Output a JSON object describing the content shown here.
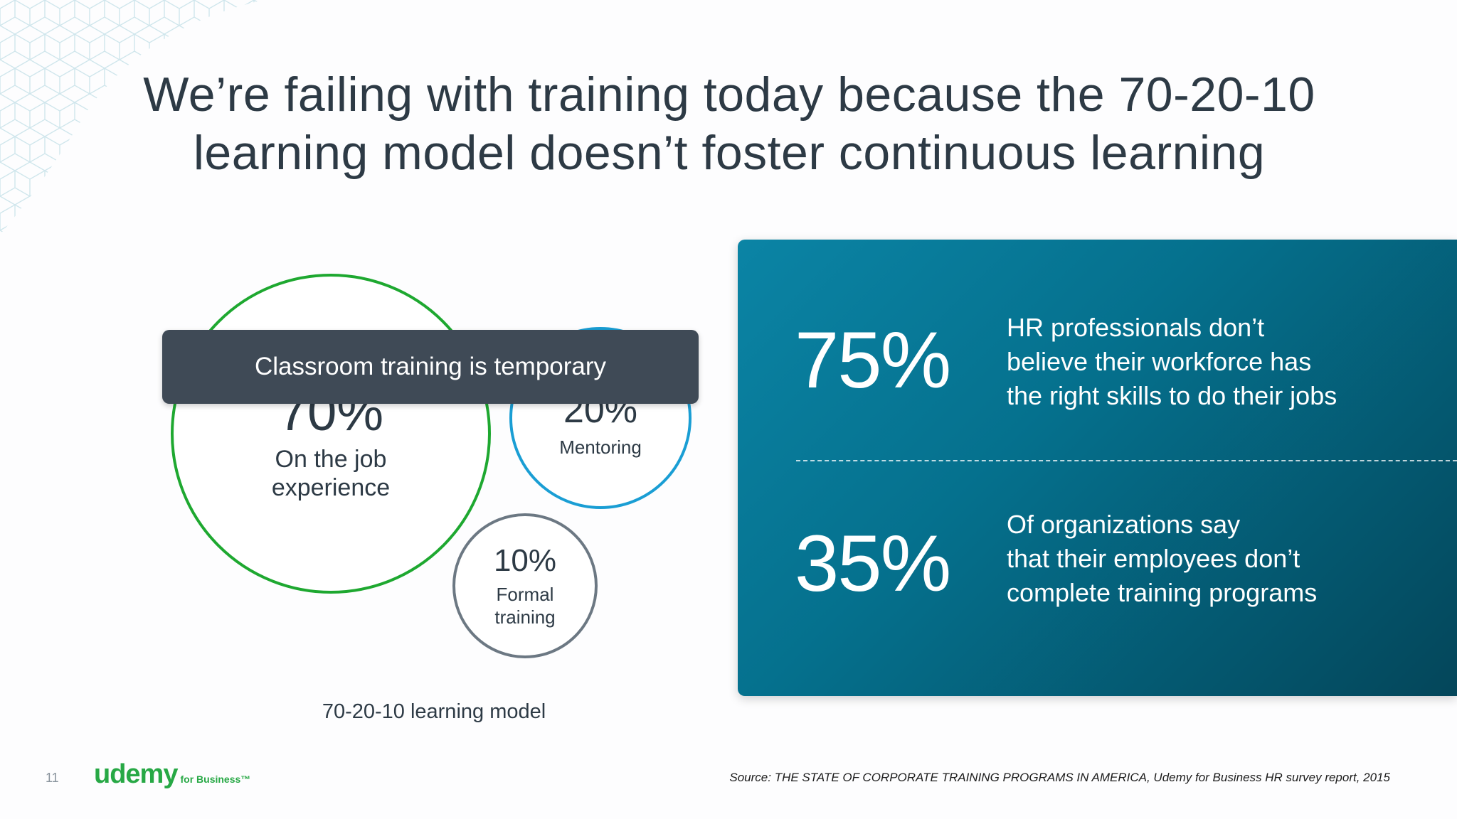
{
  "slide": {
    "title_line1": "We’re failing with training today because the 70-20-10",
    "title_line2": "learning model doesn’t foster continuous learning",
    "page_number": "11",
    "source": "Source: THE STATE OF CORPORATE TRAINING PROGRAMS IN AMERICA, Udemy for Business HR survey report, 2015"
  },
  "model": {
    "label": "70-20-10 learning model",
    "tooltip": "Classroom training is temporary",
    "circles": [
      {
        "pct": "70%",
        "label": "On the job experience",
        "color": "#1ea830"
      },
      {
        "pct": "20%",
        "label": "Mentoring",
        "color": "#1a9ed4"
      },
      {
        "pct": "10%",
        "label": "Formal training",
        "color": "#6c7883"
      }
    ]
  },
  "stats": [
    {
      "pct": "75%",
      "line1": "HR professionals don’t",
      "line2": "believe their workforce has",
      "line3": "the right skills to do their jobs"
    },
    {
      "pct": "35%",
      "line1": "Of organizations say",
      "line2": "that their employees don’t",
      "line3": "complete training programs"
    }
  ],
  "logo": {
    "main": "udemy",
    "sub": "for Business™",
    "color": "#27a845"
  },
  "colors": {
    "panel_start": "#0b84a5",
    "panel_end": "#04465a",
    "text": "#2d3a45"
  }
}
